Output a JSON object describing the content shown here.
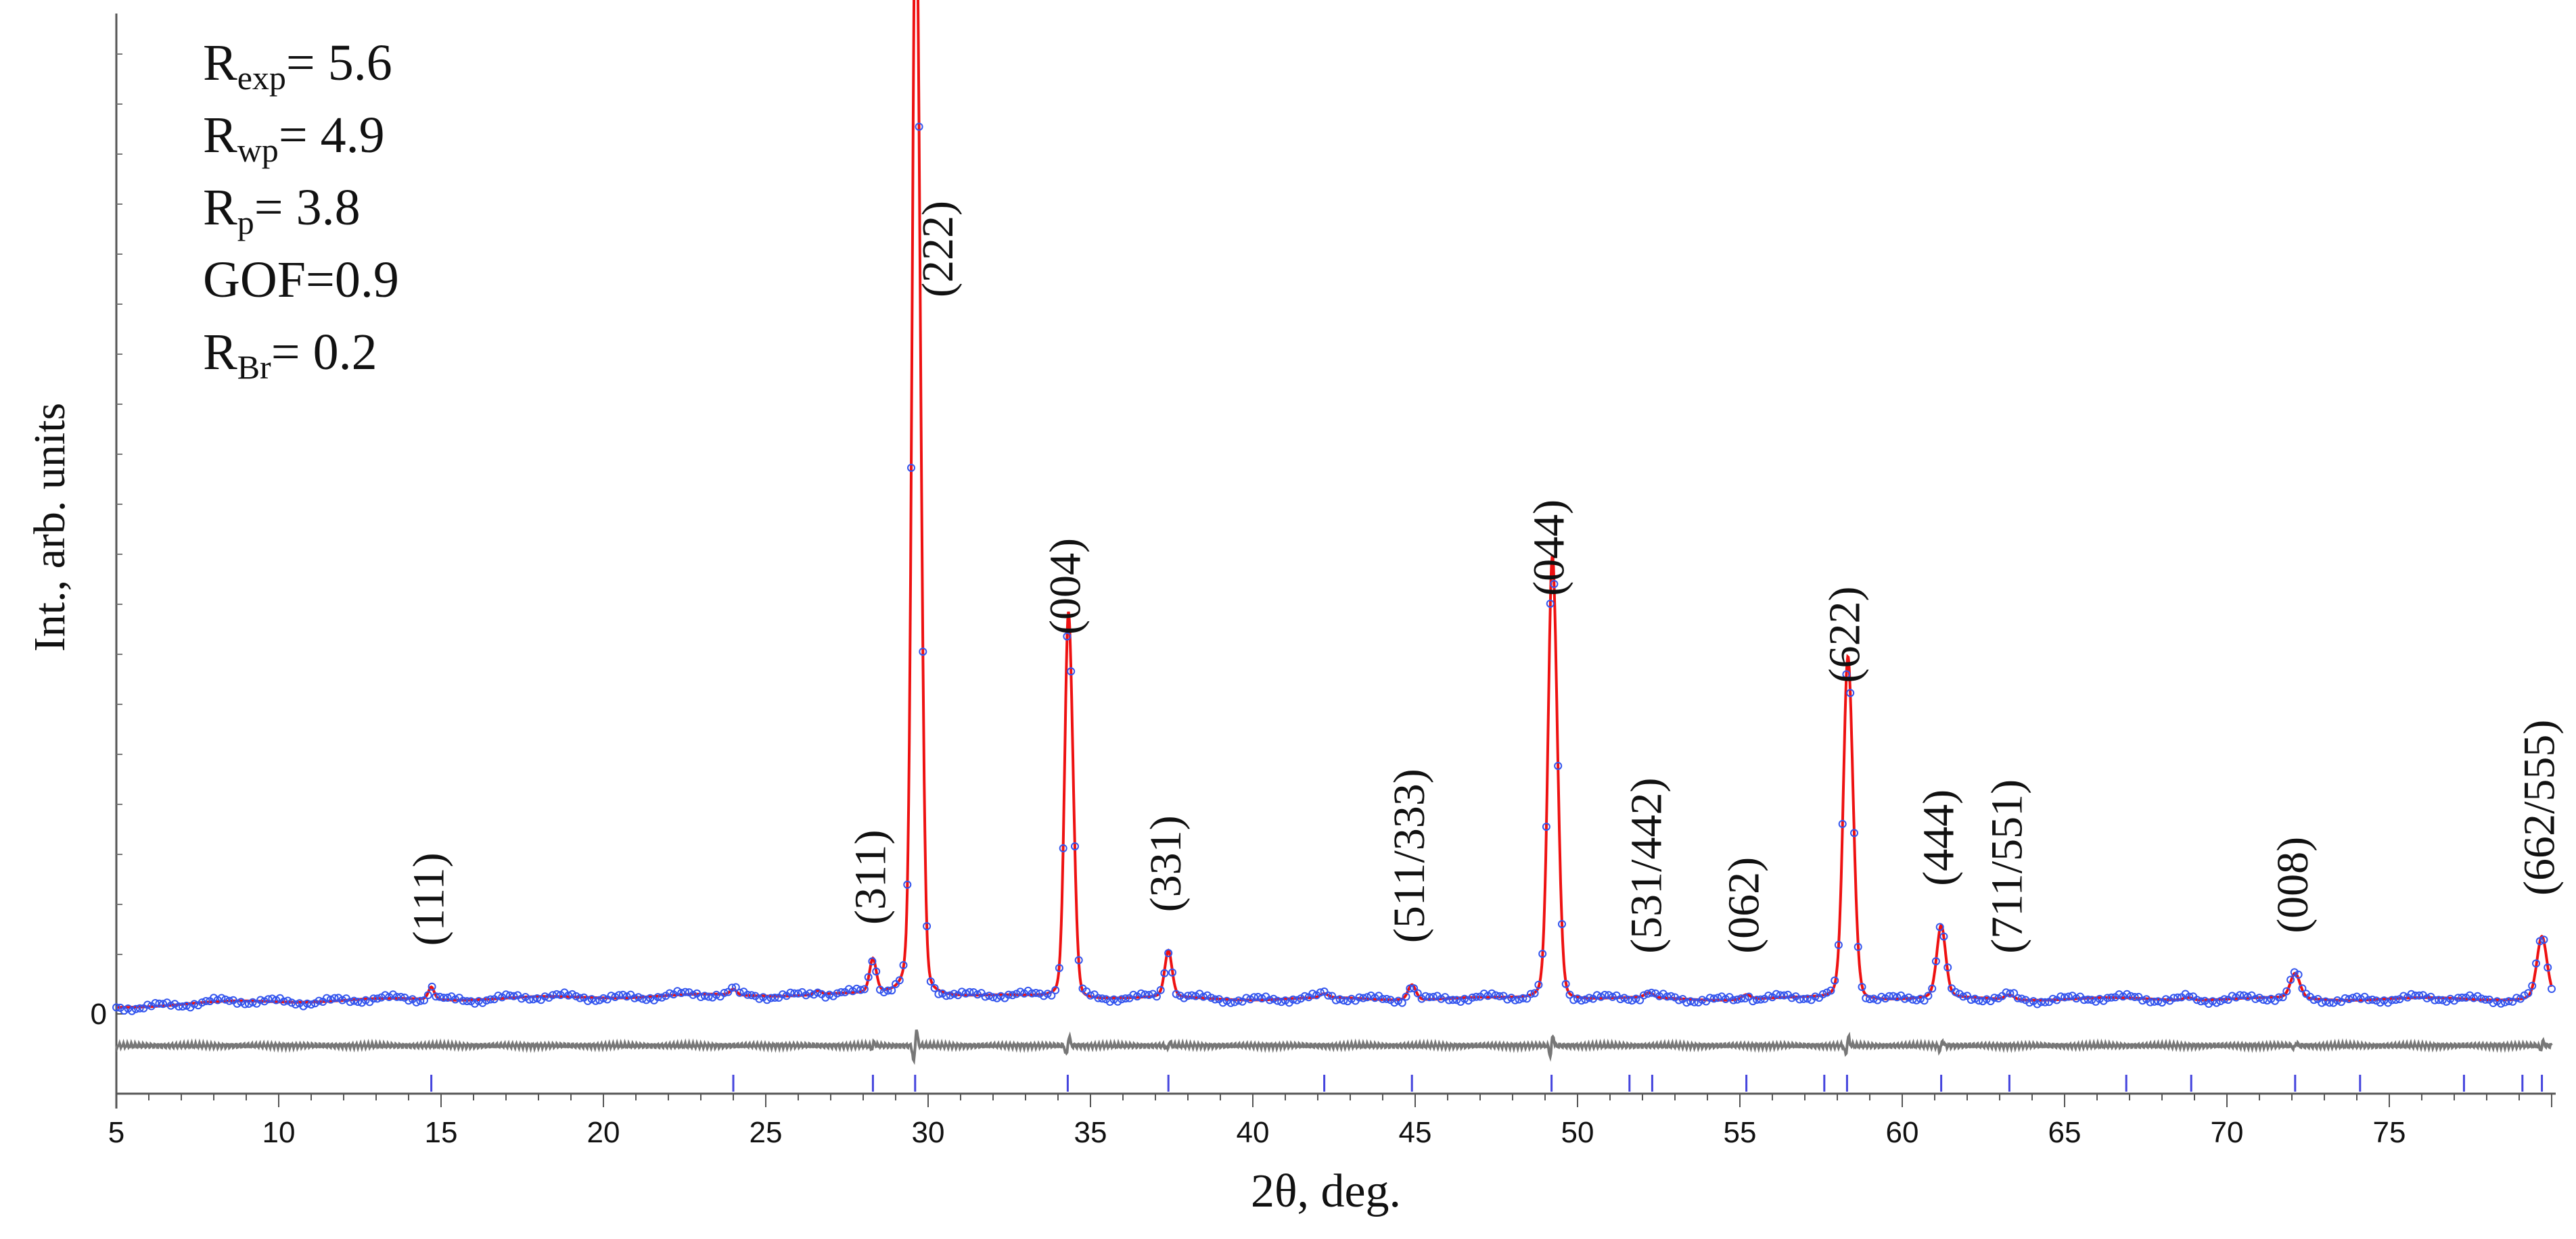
{
  "chart_data": {
    "type": "line",
    "xlabel": "2θ, deg.",
    "ylabel": "Int., arb. units",
    "xlim": [
      5,
      80
    ],
    "x_ticks": [
      5,
      10,
      15,
      20,
      25,
      30,
      35,
      40,
      45,
      50,
      55,
      60,
      65,
      70,
      75
    ],
    "y_tick_label": "0",
    "y_scale_max": 100,
    "grid": false,
    "legend": "none",
    "stats": [
      {
        "symbol": "R",
        "subscript": "exp",
        "value": "= 5.6"
      },
      {
        "symbol": "R",
        "subscript": "wp",
        "value": "= 4.9"
      },
      {
        "symbol": "R",
        "subscript": "p",
        "value": "=  3.8"
      },
      {
        "symbol": "GOF",
        "subscript": "",
        "value": "=0.9"
      },
      {
        "symbol": "R",
        "subscript": "Br",
        "value": "= 0.2"
      }
    ],
    "peaks": [
      {
        "x": 14.7,
        "height": 1.3,
        "label": "(111)"
      },
      {
        "x": 24.0,
        "height": 0.6,
        "label": ""
      },
      {
        "x": 26.6,
        "height": 0.4,
        "label": ""
      },
      {
        "x": 28.3,
        "height": 3.5,
        "label": "(311)"
      },
      {
        "x": 29.6,
        "height": 100,
        "label": "(222)"
      },
      {
        "x": 34.3,
        "height": 33.5,
        "label": "(004)"
      },
      {
        "x": 37.4,
        "height": 4.8,
        "label": "(331)"
      },
      {
        "x": 42.2,
        "height": 0.4,
        "label": ""
      },
      {
        "x": 44.9,
        "height": 1.6,
        "label": "(511/333)"
      },
      {
        "x": 49.2,
        "height": 37.5,
        "label": "(044)"
      },
      {
        "x": 52.2,
        "height": 0.5,
        "label": "(531/442)"
      },
      {
        "x": 55.2,
        "height": 0.5,
        "label": "(062)"
      },
      {
        "x": 58.3,
        "height": 28.5,
        "label": "(622)"
      },
      {
        "x": 61.2,
        "height": 7.5,
        "label": "(444)"
      },
      {
        "x": 63.3,
        "height": 0.5,
        "label": "(711/551)"
      },
      {
        "x": 68.8,
        "height": 0.3,
        "label": ""
      },
      {
        "x": 72.1,
        "height": 2.6,
        "label": "(008)"
      },
      {
        "x": 79.7,
        "height": 6.5,
        "label": "(662/555)"
      }
    ],
    "bragg_positions": [
      14.7,
      24.0,
      28.3,
      29.6,
      34.3,
      37.4,
      42.2,
      44.9,
      49.2,
      51.6,
      52.3,
      55.2,
      57.6,
      58.3,
      61.2,
      63.3,
      66.9,
      68.9,
      72.1,
      74.1,
      77.3,
      79.1,
      79.7
    ],
    "series": [
      {
        "name": "",
        "role": "observed",
        "color": "#3355ee"
      },
      {
        "name": "",
        "role": "calculated",
        "color": "#ee1111"
      },
      {
        "name": "",
        "role": "difference",
        "color": "#777777"
      },
      {
        "name": "",
        "role": "bragg-positions",
        "color": "#4444dd"
      }
    ]
  }
}
